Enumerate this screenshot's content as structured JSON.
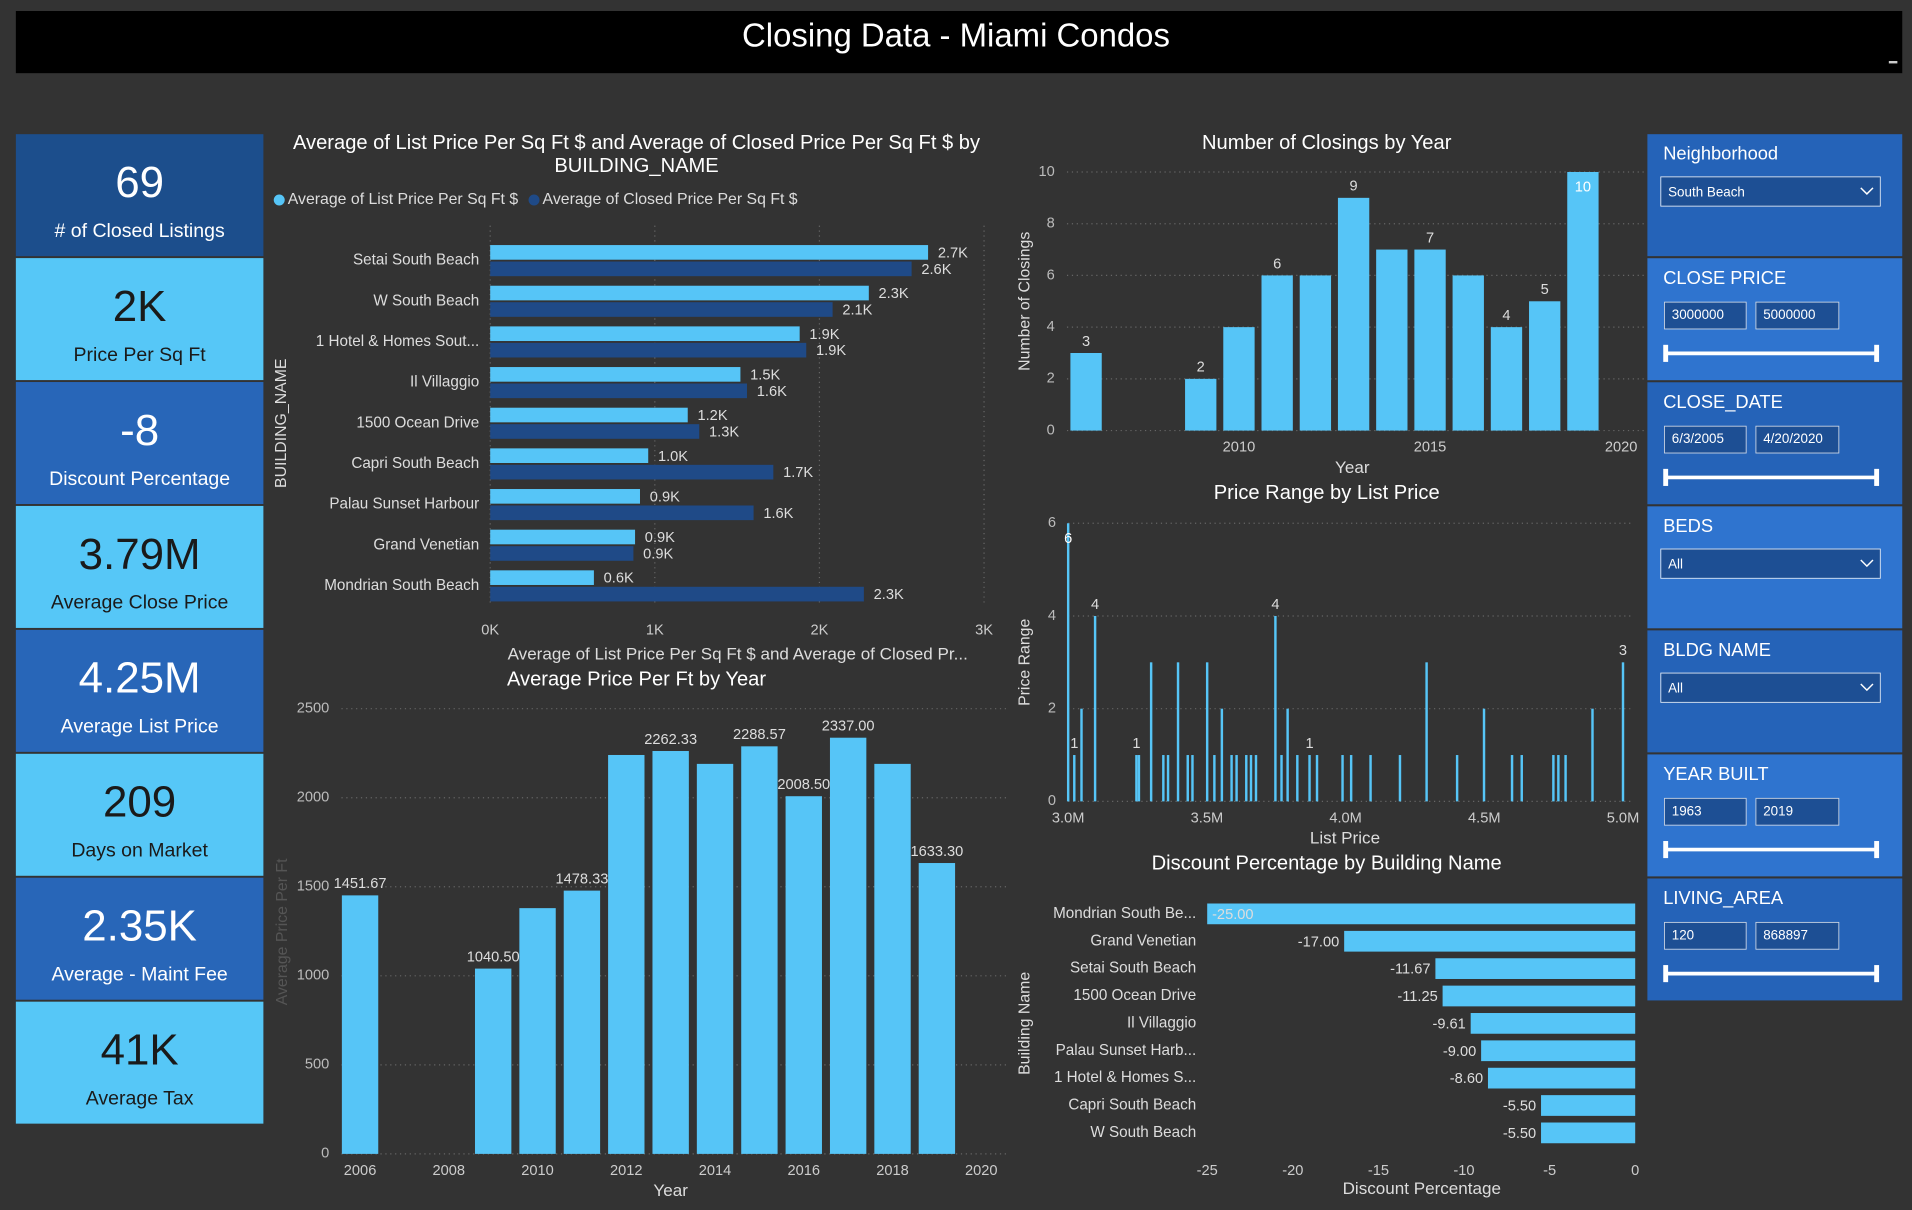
{
  "header": {
    "title": "Closing Data - Miami Condos"
  },
  "kpis": [
    {
      "value": "69",
      "label": "# of Closed Listings"
    },
    {
      "value": "2K",
      "label": "Price Per Sq Ft"
    },
    {
      "value": "-8",
      "label": "Discount Percentage"
    },
    {
      "value": "3.79M",
      "label": "Average Close Price"
    },
    {
      "value": "4.25M",
      "label": "Average List Price"
    },
    {
      "value": "209",
      "label": "Days on Market"
    },
    {
      "value": "2.35K",
      "label": "Average - Maint Fee"
    },
    {
      "value": "41K",
      "label": "Average Tax"
    }
  ],
  "chart_data": [
    {
      "type": "bar",
      "orientation": "horizontal",
      "title": "Average of List Price Per Sq Ft $ and Average of Closed Price Per Sq Ft $ by BUILDING_NAME",
      "categories": [
        "Setai South Beach",
        "W South Beach",
        "1 Hotel & Homes Sout...",
        "Il Villaggio",
        "1500 Ocean Drive",
        "Capri South Beach",
        "Palau Sunset Harbour",
        "Grand Venetian",
        "Mondrian South Beach"
      ],
      "series": [
        {
          "name": "Average of List Price Per Sq Ft $",
          "color": "#56c5f7",
          "values": [
            2660,
            2300,
            1880,
            1520,
            1200,
            960,
            910,
            880,
            630
          ],
          "value_labels": [
            "2.7K",
            "2.3K",
            "1.9K",
            "1.5K",
            "1.2K",
            "1.0K",
            "0.9K",
            "0.9K",
            "0.6K"
          ]
        },
        {
          "name": "Average of Closed Price Per Sq Ft $",
          "color": "#1f4a87",
          "values": [
            2560,
            2080,
            1920,
            1560,
            1270,
            1720,
            1600,
            870,
            2270
          ],
          "value_labels": [
            "2.6K",
            "2.1K",
            "1.9K",
            "1.6K",
            "1.3K",
            "1.7K",
            "1.6K",
            "0.9K",
            "2.3K"
          ]
        }
      ],
      "xlim": [
        0,
        3000
      ],
      "xticks": [
        {
          "value": 0,
          "label": "0K"
        },
        {
          "value": 1000,
          "label": "1K"
        },
        {
          "value": 2000,
          "label": "2K"
        },
        {
          "value": 3000,
          "label": "3K"
        }
      ],
      "x_label": "Average of List Price Per Sq Ft $ and Average of Closed Pr...",
      "y_label": "BUILDING_NAME",
      "grid": true,
      "legend": "top"
    },
    {
      "type": "bar",
      "title": "Number of Closings by Year",
      "x": [
        2006,
        2009,
        2010,
        2011,
        2012,
        2013,
        2014,
        2015,
        2016,
        2017,
        2018,
        2019
      ],
      "values": [
        3,
        2,
        4,
        6,
        6,
        9,
        7,
        7,
        6,
        4,
        5,
        10
      ],
      "value_labels": [
        "3",
        "2",
        null,
        "6",
        null,
        "9",
        null,
        "7",
        null,
        "4",
        "5",
        "10"
      ],
      "color": "#56c5f7",
      "xlim": [
        2005.5,
        2020.4
      ],
      "xticks": [
        2010,
        2015,
        2020
      ],
      "ylim": [
        0,
        10
      ],
      "yticks": [
        0,
        2,
        4,
        6,
        8,
        10
      ],
      "x_label": "Year",
      "y_label": "Number of Closings",
      "grid": true
    },
    {
      "type": "bar",
      "title": "Price Range by List Price",
      "x": [
        3000000,
        3022000,
        3048000,
        3097000,
        3246000,
        3255000,
        3299000,
        3343000,
        3360000,
        3396000,
        3431000,
        3448000,
        3501000,
        3527000,
        3554000,
        3589000,
        3607000,
        3642000,
        3659000,
        3677000,
        3747000,
        3769000,
        3791000,
        3826000,
        3870000,
        3897000,
        3989000,
        4020000,
        4090000,
        4196000,
        4292000,
        4402000,
        4499000,
        4600000,
        4635000,
        4749000,
        4767000,
        4793000,
        4890000,
        5000000
      ],
      "values": [
        6,
        1,
        2,
        4,
        1,
        1,
        3,
        1,
        1,
        3,
        1,
        1,
        3,
        1,
        2,
        1,
        1,
        1,
        1,
        1,
        4,
        1,
        2,
        1,
        1,
        1,
        1,
        1,
        1,
        1,
        3,
        1,
        2,
        1,
        1,
        1,
        1,
        1,
        2,
        3
      ],
      "value_labels": [
        "6",
        "1",
        null,
        "4",
        "1",
        null,
        null,
        null,
        null,
        null,
        null,
        null,
        null,
        null,
        null,
        null,
        null,
        null,
        null,
        null,
        "4",
        null,
        null,
        null,
        "1",
        null,
        null,
        null,
        null,
        null,
        null,
        null,
        null,
        null,
        null,
        null,
        null,
        null,
        null,
        "3"
      ],
      "color": "#56c5f7",
      "xlim": [
        3000000,
        5000000
      ],
      "xticks": [
        {
          "value": 3000000,
          "label": "3.0M"
        },
        {
          "value": 3500000,
          "label": "3.5M"
        },
        {
          "value": 4000000,
          "label": "4.0M"
        },
        {
          "value": 4500000,
          "label": "4.5M"
        },
        {
          "value": 5000000,
          "label": "5.0M"
        }
      ],
      "ylim": [
        0,
        6
      ],
      "yticks": [
        0,
        2,
        4,
        6
      ],
      "x_label": "List Price",
      "y_label": "Price Range",
      "grid": true
    },
    {
      "type": "bar",
      "title": "Average Price Per Ft by Year",
      "x": [
        2006,
        2009,
        2010,
        2011,
        2012,
        2013,
        2014,
        2015,
        2016,
        2017,
        2018,
        2019
      ],
      "values": [
        1451.67,
        1040.5,
        1380,
        1478.33,
        2240,
        2262.33,
        2190,
        2288.57,
        2008.5,
        2337,
        2190,
        1633.3
      ],
      "value_labels": [
        "1451.67",
        "1040.50",
        null,
        "1478.33",
        null,
        "2262.33",
        null,
        "2288.57",
        "2008.50",
        "2337.00",
        null,
        "1633.30"
      ],
      "color": "#56c5f7",
      "xlim": [
        2005.58,
        2020.42
      ],
      "xticks": [
        2006,
        2008,
        2010,
        2012,
        2014,
        2016,
        2018,
        2020
      ],
      "ylim": [
        0,
        2500
      ],
      "yticks": [
        0,
        500,
        1000,
        1500,
        2000,
        2500
      ],
      "x_label": "Year",
      "y_label": "Average Price Per Ft",
      "grid": true
    },
    {
      "type": "bar",
      "orientation": "horizontal",
      "title": "Discount Percentage by Building Name",
      "categories": [
        "Mondrian South Be...",
        "Grand Venetian",
        "Setai South Beach",
        "1500 Ocean Drive",
        "Il Villaggio",
        "Palau Sunset Harb...",
        "1 Hotel & Homes S...",
        "Capri South Beach",
        "W South Beach"
      ],
      "series": [
        {
          "color": "#56c5f7",
          "values": [
            -25,
            -17,
            -11.67,
            -11.25,
            -9.61,
            -9,
            -8.6,
            -5.5,
            -5.5
          ],
          "value_labels": [
            "-25.00",
            "-17.00",
            "-11.67",
            "-11.25",
            "-9.61",
            "-9.00",
            "-8.60",
            "-5.50",
            "-5.50"
          ]
        }
      ],
      "xlim": [
        -25,
        0
      ],
      "xticks": [
        -25,
        -20,
        -15,
        -10,
        -5,
        0
      ],
      "x_label": "Discount Percentage",
      "y_label": "Building Name",
      "grid": false
    }
  ],
  "slicers": [
    {
      "title": "Neighborhood",
      "selection": "South Beach"
    },
    {
      "title": "CLOSE PRICE",
      "from": "3000000",
      "to": "5000000"
    },
    {
      "title": "CLOSE_DATE",
      "from": "6/3/2005",
      "to": "4/20/2020"
    },
    {
      "title": "BEDS",
      "selection": "All"
    },
    {
      "title": "BLDG NAME",
      "selection": "All"
    },
    {
      "title": "YEAR BUILT",
      "from": "1963",
      "to": "2019"
    },
    {
      "title": "LIVING_AREA",
      "from": "120",
      "to": "868897"
    }
  ]
}
